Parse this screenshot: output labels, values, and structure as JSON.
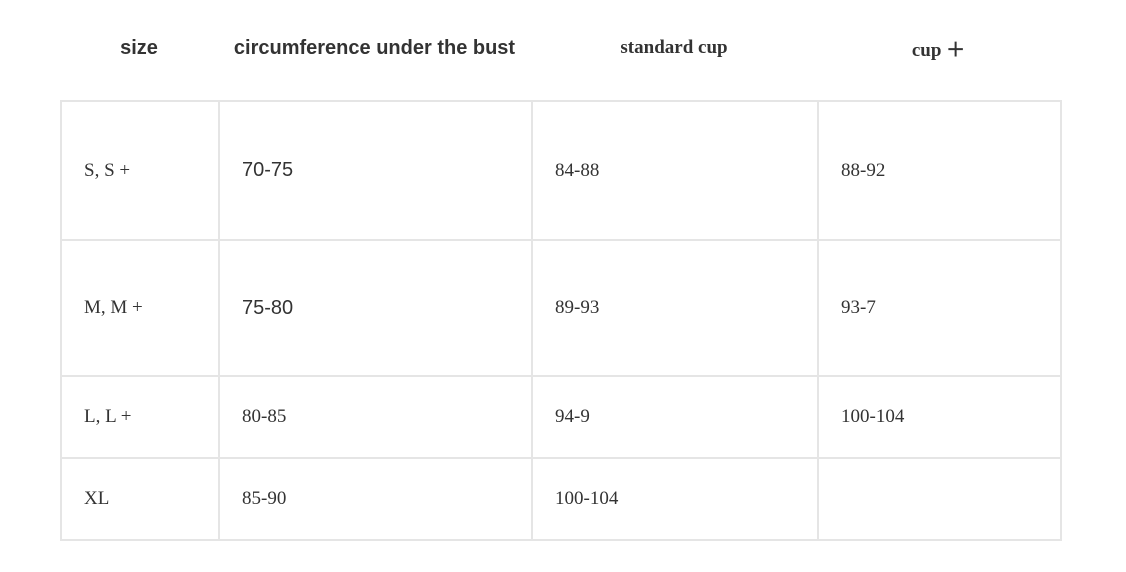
{
  "headers": [
    "size",
    "circumference under the bust",
    "standard cup",
    "cup ＋"
  ],
  "rows": [
    [
      "S, S +",
      "70-75",
      "84-88",
      "88-92"
    ],
    [
      "M, M +",
      "75-80",
      "89-93",
      "93-7"
    ],
    [
      "L, L +",
      "80-85",
      "94-9",
      "100-104"
    ],
    [
      "XL",
      "85-90",
      "100-104",
      ""
    ]
  ]
}
